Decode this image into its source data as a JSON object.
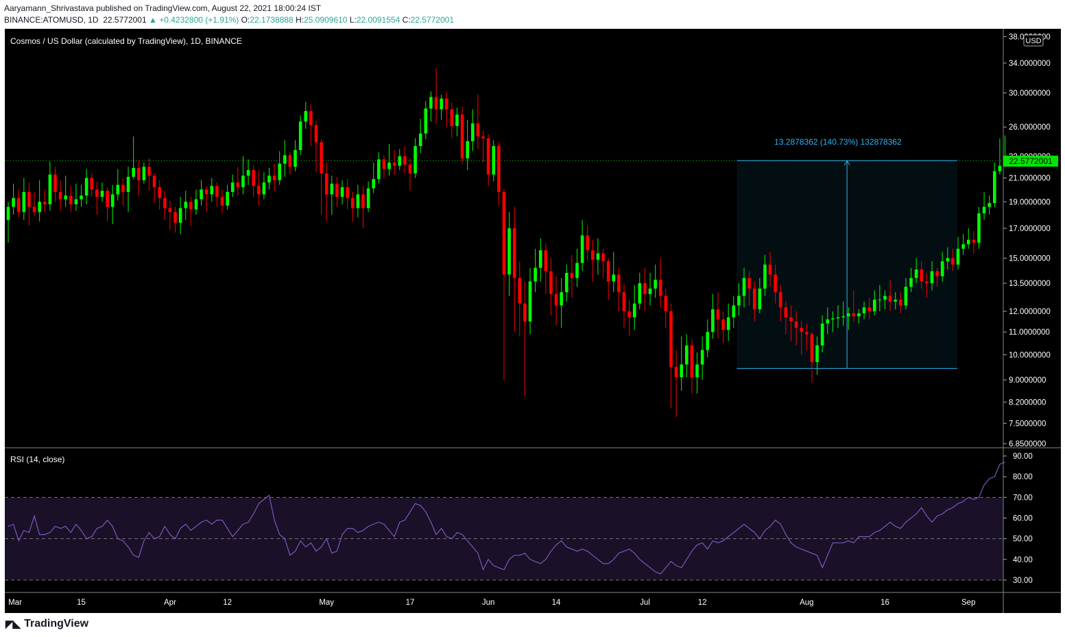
{
  "header": {
    "publisher_line": "Aaryamann_Shrivastava published on TradingView.com, August 22, 2021 18:00:24 IST",
    "symbol": "BINANCE:ATOMUSD, 1D",
    "last": "22.5772001",
    "change": "▲ +0.4232800 (+1.91%)",
    "o_label": "O:",
    "o_value": "22.1738888",
    "h_label": "H:",
    "h_value": "25.0909610",
    "l_label": "L:",
    "l_value": "22.0091554",
    "c_label": "C:",
    "c_value": "22.5772001"
  },
  "chart_title": "Cosmos / US Dollar (calculated by TradingView), 1D, BINANCE",
  "currency_badge": "USD",
  "price_tag": "22.5772001",
  "measure_label": "13.2878362 (140.73%) 132878362",
  "rsi_title": "RSI (14, close)",
  "footer": {
    "brand": "TradingView",
    "icon": "tradingview-logo-icon"
  },
  "colors": {
    "up": "#00ff00",
    "down": "#ff0000",
    "rsi": "#7e57c2",
    "measure": "#29b6f6",
    "background": "#000000"
  },
  "chart_data": {
    "type": "candlestick",
    "x_labels": [
      "Mar",
      "15",
      "Apr",
      "12",
      "May",
      "17",
      "Jun",
      "14",
      "Jul",
      "12",
      "Aug",
      "16",
      "Sep"
    ],
    "y_ticks": [
      "38.0000000",
      "34.0000000",
      "30.0000000",
      "26.0000000",
      "22.0000000",
      "21.0000000",
      "19.0000000",
      "17.0000000",
      "15.0000000",
      "13.5000000",
      "12.0000000",
      "11.0000000",
      "10.0000000",
      "9.0000000",
      "8.2000000",
      "7.5000000",
      "6.8500000"
    ],
    "rsi_ticks": [
      "90.00",
      "80.00",
      "70.00",
      "60.00",
      "50.00",
      "40.00",
      "30.00"
    ],
    "start_date": "2021-03-01",
    "candles": [
      [
        17.6,
        18.6,
        16.0,
        19.0
      ],
      [
        18.6,
        19.3,
        18.0,
        20.5
      ],
      [
        19.3,
        18.2,
        17.8,
        20.0
      ],
      [
        18.2,
        19.8,
        17.6,
        21.0
      ],
      [
        19.8,
        18.6,
        17.2,
        20.6
      ],
      [
        18.6,
        18.2,
        17.9,
        19.8
      ],
      [
        18.2,
        19.0,
        17.5,
        20.8
      ],
      [
        19.0,
        18.8,
        18.2,
        20.0
      ],
      [
        18.8,
        21.3,
        18.3,
        22.5
      ],
      [
        21.3,
        19.8,
        19.0,
        22.0
      ],
      [
        19.8,
        19.2,
        18.3,
        20.8
      ],
      [
        19.2,
        19.5,
        18.6,
        21.2
      ],
      [
        19.5,
        18.8,
        18.2,
        20.3
      ],
      [
        18.8,
        19.2,
        18.3,
        20.5
      ],
      [
        19.2,
        19.5,
        18.6,
        20.4
      ],
      [
        19.5,
        21.0,
        18.8,
        21.8
      ],
      [
        21.0,
        20.0,
        19.4,
        21.4
      ],
      [
        20.0,
        19.4,
        18.0,
        20.7
      ],
      [
        19.4,
        19.9,
        19.0,
        20.6
      ],
      [
        19.9,
        18.6,
        17.5,
        20.2
      ],
      [
        18.6,
        19.6,
        17.3,
        20.4
      ],
      [
        19.6,
        20.4,
        19.1,
        21.8
      ],
      [
        20.4,
        19.8,
        18.7,
        21.0
      ],
      [
        19.8,
        21.1,
        18.2,
        22.0
      ],
      [
        21.1,
        21.9,
        20.9,
        25.0
      ],
      [
        21.9,
        20.8,
        19.5,
        22.6
      ],
      [
        20.8,
        22.0,
        20.5,
        22.4
      ],
      [
        22.0,
        21.2,
        19.9,
        22.8
      ],
      [
        21.2,
        20.2,
        18.9,
        21.4
      ],
      [
        20.2,
        19.3,
        18.4,
        20.8
      ],
      [
        19.3,
        18.5,
        17.6,
        19.9
      ],
      [
        18.5,
        18.2,
        16.9,
        19.1
      ],
      [
        18.2,
        17.4,
        16.7,
        18.6
      ],
      [
        17.4,
        18.5,
        16.6,
        19.4
      ],
      [
        18.5,
        19.0,
        17.6,
        19.9
      ],
      [
        19.0,
        18.4,
        17.2,
        19.4
      ],
      [
        18.4,
        19.2,
        18.0,
        20.0
      ],
      [
        19.2,
        20.0,
        18.7,
        20.8
      ],
      [
        20.0,
        19.6,
        18.2,
        20.3
      ],
      [
        19.6,
        20.3,
        19.0,
        21.0
      ],
      [
        20.3,
        19.4,
        18.6,
        20.6
      ],
      [
        19.4,
        18.7,
        18.1,
        20.0
      ],
      [
        18.7,
        19.8,
        18.4,
        20.4
      ],
      [
        19.8,
        20.6,
        19.4,
        21.3
      ],
      [
        20.6,
        20.2,
        19.5,
        22.0
      ],
      [
        20.2,
        21.2,
        19.6,
        23.0
      ],
      [
        21.2,
        21.7,
        20.4,
        22.7
      ],
      [
        21.7,
        20.3,
        19.4,
        22.2
      ],
      [
        20.3,
        19.6,
        18.7,
        21.7
      ],
      [
        19.6,
        20.6,
        19.2,
        21.5
      ],
      [
        20.6,
        21.2,
        20.0,
        21.9
      ],
      [
        21.2,
        20.8,
        19.9,
        22.3
      ],
      [
        20.8,
        22.3,
        20.4,
        23.5
      ],
      [
        22.3,
        23.1,
        21.1,
        24.6
      ],
      [
        23.1,
        22.0,
        21.3,
        23.4
      ],
      [
        22.0,
        23.6,
        21.6,
        24.6
      ],
      [
        23.6,
        26.6,
        23.1,
        27.3
      ],
      [
        26.6,
        27.8,
        25.8,
        28.9
      ],
      [
        27.8,
        26.2,
        24.0,
        28.6
      ],
      [
        26.2,
        24.4,
        21.5,
        26.7
      ],
      [
        24.4,
        21.4,
        18.0,
        24.7
      ],
      [
        21.4,
        19.6,
        17.5,
        22.4
      ],
      [
        19.6,
        20.5,
        18.0,
        21.2
      ],
      [
        20.5,
        19.4,
        18.6,
        21.1
      ],
      [
        19.4,
        20.2,
        18.8,
        20.8
      ],
      [
        20.2,
        19.3,
        18.4,
        20.9
      ],
      [
        19.3,
        18.5,
        17.5,
        19.8
      ],
      [
        18.5,
        19.6,
        17.8,
        20.4
      ],
      [
        19.6,
        18.5,
        17.0,
        20.3
      ],
      [
        18.5,
        20.1,
        18.2,
        20.7
      ],
      [
        20.1,
        20.9,
        19.7,
        22.4
      ],
      [
        20.9,
        22.7,
        20.5,
        23.4
      ],
      [
        22.7,
        21.8,
        21.0,
        23.1
      ],
      [
        21.8,
        22.4,
        21.2,
        24.2
      ],
      [
        22.4,
        22.1,
        21.3,
        23.6
      ],
      [
        22.1,
        23.0,
        21.7,
        23.7
      ],
      [
        23.0,
        22.2,
        21.4,
        24.0
      ],
      [
        22.2,
        21.4,
        19.9,
        22.8
      ],
      [
        21.4,
        24.0,
        21.0,
        24.8
      ],
      [
        24.0,
        25.3,
        23.3,
        26.9
      ],
      [
        25.3,
        28.1,
        24.7,
        29.0
      ],
      [
        28.1,
        29.5,
        26.6,
        30.2
      ],
      [
        29.5,
        28.0,
        26.3,
        33.3
      ],
      [
        28.0,
        29.3,
        26.8,
        29.8
      ],
      [
        29.3,
        28.0,
        26.0,
        30.1
      ],
      [
        28.0,
        26.1,
        24.8,
        28.8
      ],
      [
        26.1,
        27.4,
        25.0,
        28.2
      ],
      [
        27.4,
        22.8,
        22.3,
        28.3
      ],
      [
        22.8,
        24.5,
        21.7,
        26.8
      ],
      [
        24.5,
        26.4,
        23.5,
        28.0
      ],
      [
        26.4,
        25.0,
        23.7,
        29.8
      ],
      [
        25.0,
        24.8,
        22.4,
        25.6
      ],
      [
        24.8,
        21.3,
        20.3,
        25.2
      ],
      [
        21.3,
        24.0,
        20.7,
        24.6
      ],
      [
        24.0,
        19.8,
        18.7,
        24.4
      ],
      [
        19.8,
        14.0,
        9.0,
        20.0
      ],
      [
        14.0,
        17.0,
        12.8,
        18.2
      ],
      [
        17.0,
        13.8,
        11.0,
        18.6
      ],
      [
        13.8,
        12.4,
        10.8,
        14.8
      ],
      [
        12.4,
        11.5,
        8.4,
        13.6
      ],
      [
        11.5,
        13.6,
        10.9,
        14.4
      ],
      [
        13.6,
        14.4,
        13.0,
        15.6
      ],
      [
        14.4,
        15.5,
        13.6,
        16.3
      ],
      [
        15.5,
        14.2,
        12.9,
        16.0
      ],
      [
        14.2,
        12.9,
        11.8,
        15.0
      ],
      [
        12.9,
        12.3,
        11.3,
        13.9
      ],
      [
        12.3,
        13.0,
        11.2,
        13.8
      ],
      [
        13.0,
        14.1,
        12.5,
        14.6
      ],
      [
        14.1,
        13.8,
        12.7,
        15.2
      ],
      [
        13.8,
        14.7,
        13.3,
        15.6
      ],
      [
        14.7,
        16.5,
        14.2,
        17.6
      ],
      [
        16.5,
        15.5,
        14.8,
        17.2
      ],
      [
        15.5,
        14.9,
        13.6,
        16.2
      ],
      [
        14.9,
        15.3,
        14.0,
        16.3
      ],
      [
        15.3,
        14.8,
        13.8,
        15.6
      ],
      [
        14.8,
        13.6,
        12.6,
        15.0
      ],
      [
        13.6,
        14.0,
        13.0,
        15.4
      ],
      [
        14.0,
        13.0,
        12.0,
        14.4
      ],
      [
        13.0,
        12.0,
        11.2,
        13.5
      ],
      [
        12.0,
        11.7,
        10.8,
        12.6
      ],
      [
        11.7,
        12.4,
        11.1,
        13.4
      ],
      [
        12.4,
        13.5,
        12.1,
        14.1
      ],
      [
        13.5,
        12.9,
        12.0,
        14.4
      ],
      [
        12.9,
        13.2,
        12.3,
        14.1
      ],
      [
        13.2,
        13.7,
        12.7,
        14.6
      ],
      [
        13.7,
        12.8,
        12.2,
        15.0
      ],
      [
        12.8,
        12.0,
        11.2,
        13.2
      ],
      [
        12.0,
        9.5,
        8.0,
        12.4
      ],
      [
        9.5,
        9.1,
        7.7,
        10.2
      ],
      [
        9.1,
        9.6,
        8.6,
        10.8
      ],
      [
        9.6,
        10.4,
        9.1,
        10.9
      ],
      [
        10.4,
        9.1,
        8.5,
        10.7
      ],
      [
        9.1,
        9.6,
        8.5,
        10.1
      ],
      [
        9.6,
        10.2,
        9.0,
        10.8
      ],
      [
        10.2,
        11.0,
        9.9,
        11.6
      ],
      [
        11.0,
        12.1,
        10.7,
        12.9
      ],
      [
        12.1,
        11.6,
        10.7,
        13.0
      ],
      [
        11.6,
        11.1,
        10.5,
        12.0
      ],
      [
        11.1,
        11.7,
        10.6,
        12.4
      ],
      [
        11.7,
        12.3,
        11.2,
        12.8
      ],
      [
        12.3,
        12.8,
        11.8,
        13.5
      ],
      [
        12.8,
        13.8,
        12.2,
        14.4
      ],
      [
        13.8,
        13.2,
        12.3,
        14.2
      ],
      [
        13.2,
        12.1,
        11.5,
        13.6
      ],
      [
        12.1,
        13.2,
        11.9,
        13.8
      ],
      [
        13.2,
        14.6,
        12.8,
        15.2
      ],
      [
        14.6,
        14.0,
        13.3,
        15.4
      ],
      [
        14.0,
        13.0,
        12.4,
        14.6
      ],
      [
        13.0,
        12.2,
        11.5,
        13.4
      ],
      [
        12.2,
        11.7,
        10.9,
        12.5
      ],
      [
        11.7,
        11.5,
        10.6,
        12.3
      ],
      [
        11.5,
        11.2,
        10.4,
        12.0
      ],
      [
        11.2,
        11.0,
        10.0,
        11.5
      ],
      [
        11.0,
        10.9,
        10.2,
        11.4
      ],
      [
        10.9,
        9.7,
        8.9,
        11.0
      ],
      [
        9.7,
        10.4,
        9.2,
        10.8
      ],
      [
        10.4,
        11.4,
        10.1,
        11.8
      ],
      [
        11.4,
        11.6,
        10.9,
        12.2
      ],
      [
        11.6,
        11.65,
        11.0,
        12.0
      ],
      [
        11.65,
        11.7,
        11.2,
        12.3
      ],
      [
        11.7,
        11.75,
        11.3,
        12.5
      ],
      [
        11.75,
        11.9,
        11.1,
        12.2
      ],
      [
        11.9,
        11.75,
        11.5,
        13.1
      ],
      [
        11.75,
        11.9,
        11.4,
        12.1
      ],
      [
        11.9,
        12.2,
        11.6,
        12.5
      ],
      [
        12.2,
        12.0,
        11.6,
        12.7
      ],
      [
        12.0,
        12.6,
        11.8,
        13.1
      ],
      [
        12.6,
        12.6,
        12.0,
        13.4
      ],
      [
        12.6,
        12.8,
        12.1,
        13.1
      ],
      [
        12.8,
        12.5,
        12.0,
        13.7
      ],
      [
        12.5,
        12.6,
        12.1,
        13.0
      ],
      [
        12.6,
        12.3,
        11.9,
        13.0
      ],
      [
        12.3,
        13.3,
        12.1,
        13.8
      ],
      [
        13.3,
        13.8,
        13.0,
        14.4
      ],
      [
        13.8,
        14.3,
        13.5,
        15.0
      ],
      [
        14.3,
        13.6,
        13.2,
        14.8
      ],
      [
        13.6,
        13.5,
        12.7,
        14.1
      ],
      [
        13.5,
        14.2,
        13.1,
        14.8
      ],
      [
        14.2,
        13.9,
        13.3,
        14.4
      ],
      [
        13.9,
        14.8,
        13.6,
        15.4
      ],
      [
        14.8,
        15.0,
        14.3,
        15.7
      ],
      [
        15.0,
        14.6,
        14.2,
        15.6
      ],
      [
        14.6,
        15.6,
        14.3,
        16.4
      ],
      [
        15.6,
        15.9,
        15.2,
        16.6
      ],
      [
        15.9,
        16.2,
        15.6,
        17.0
      ],
      [
        16.2,
        16.0,
        15.3,
        16.8
      ],
      [
        16.0,
        18.1,
        15.6,
        18.6
      ],
      [
        18.1,
        18.6,
        17.6,
        19.8
      ],
      [
        18.6,
        18.9,
        18.0,
        19.5
      ],
      [
        18.9,
        21.6,
        18.6,
        22.4
      ],
      [
        21.6,
        22.1,
        21.3,
        24.8
      ],
      [
        22.17,
        22.58,
        22.01,
        25.09
      ]
    ],
    "rsi": [
      56,
      57,
      49,
      54,
      53,
      61,
      52,
      52,
      53,
      56,
      55,
      56,
      53,
      57,
      54,
      50,
      51,
      55,
      56,
      59,
      56,
      50,
      49,
      46,
      42,
      41,
      49,
      53,
      50,
      51,
      56,
      52,
      50,
      55,
      57,
      54,
      56,
      58,
      59,
      57,
      59,
      59,
      55,
      51,
      54,
      57,
      58,
      62,
      67,
      69,
      71,
      59,
      52,
      50,
      42,
      44,
      49,
      46,
      48,
      44,
      46,
      50,
      43,
      44,
      52,
      55,
      55,
      53,
      54,
      56,
      57,
      58,
      57,
      54,
      51,
      58,
      59,
      63,
      67,
      66,
      63,
      58,
      52,
      55,
      51,
      50,
      53,
      52,
      49,
      46,
      43,
      35,
      40,
      37,
      36,
      35,
      40,
      42,
      42,
      43,
      40,
      39,
      38,
      40,
      44,
      47,
      49,
      46,
      45,
      44,
      45,
      44,
      42,
      40,
      38,
      38,
      40,
      43,
      44,
      45,
      43,
      40,
      38,
      36,
      34,
      33,
      36,
      39,
      37,
      36,
      40,
      44,
      47,
      48,
      45,
      49,
      48,
      49,
      51,
      53,
      55,
      57,
      55,
      53,
      50,
      54,
      56,
      59,
      57,
      52,
      48,
      46,
      45,
      44,
      43,
      42,
      36,
      42,
      48,
      48,
      48,
      49,
      48,
      51,
      51,
      51,
      53,
      54,
      56,
      58,
      56,
      55,
      58,
      60,
      62,
      65,
      61,
      58,
      61,
      62,
      64,
      65,
      67,
      68,
      70,
      69,
      70,
      76,
      79,
      80,
      86,
      87
    ]
  }
}
